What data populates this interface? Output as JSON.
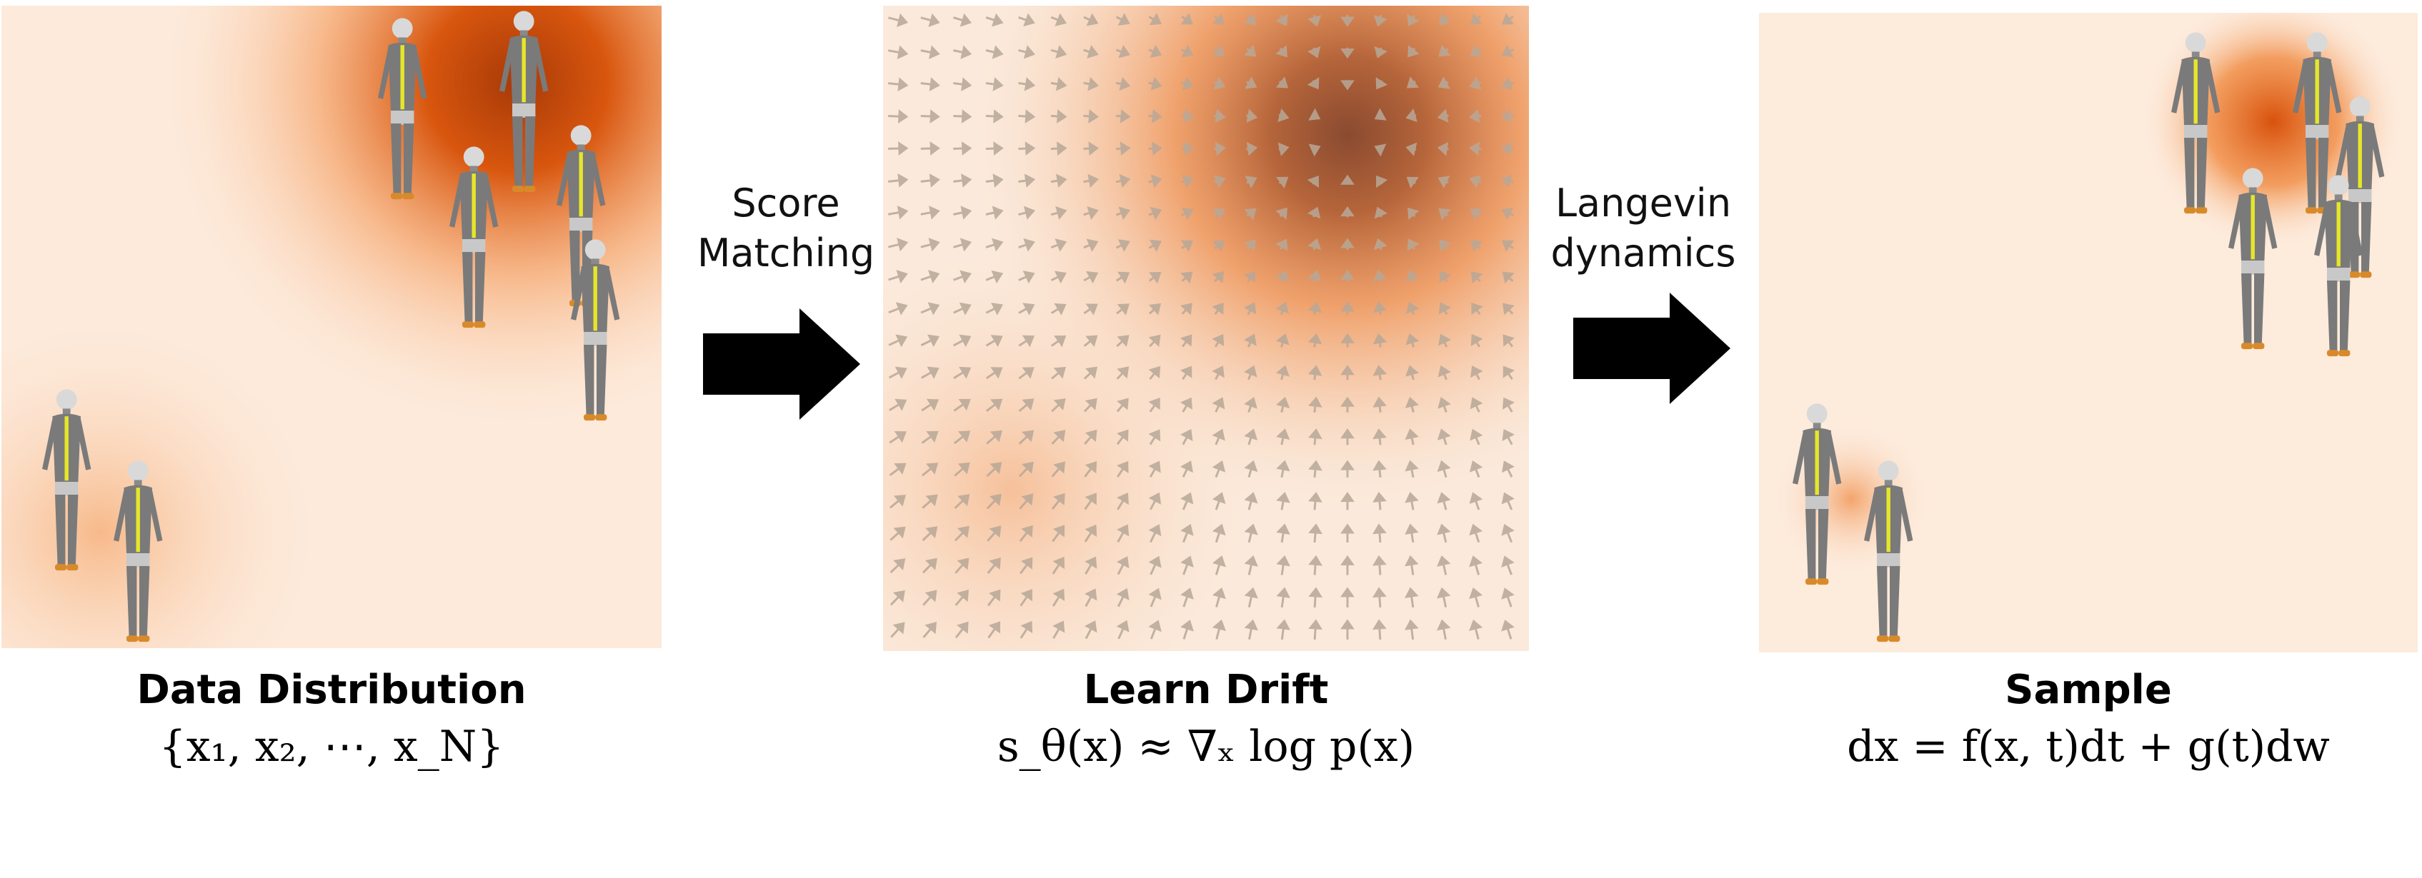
{
  "arrows": {
    "first_label_line1": "Score",
    "first_label_line2": "Matching",
    "second_label_line1": "Langevin",
    "second_label_line2": "dynamics"
  },
  "panels": {
    "data": {
      "title": "Data Distribution",
      "formula": "{x₁, x₂, ⋯, x_N}"
    },
    "drift": {
      "title": "Learn Drift",
      "formula": "s_θ(x) ≈ ∇ₓ log p(x)"
    },
    "sample": {
      "title": "Sample",
      "formula": "dx = f(x, t)dt + g(t)dw"
    }
  },
  "colors": {
    "density_high": "#c84a0a",
    "density_mid": "#f08a3a",
    "density_low": "#fdeee0",
    "vector_arrow": "#b8a898",
    "figure_body": "#7a7a7a",
    "figure_stripe": "#e6e62a"
  },
  "icons": {
    "figure": "human-mannequin-icon",
    "flow_arrow": "right-arrow-icon"
  }
}
